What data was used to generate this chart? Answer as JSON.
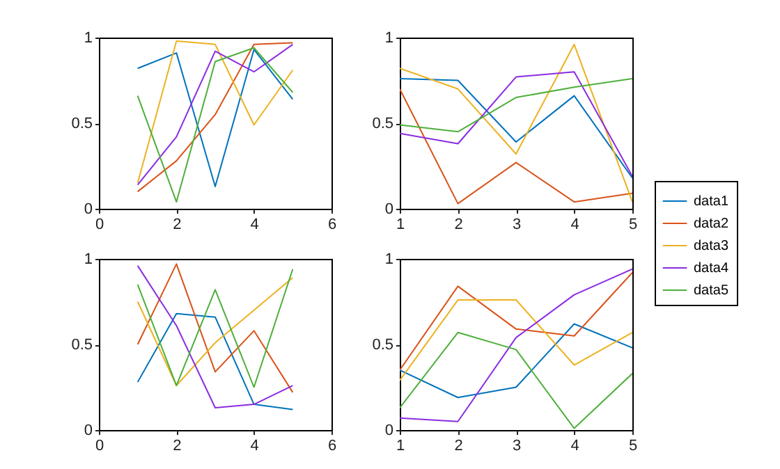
{
  "chart_data": [
    {
      "type": "line",
      "x": [
        1,
        2,
        3,
        4,
        5
      ],
      "xlim": [
        0,
        6
      ],
      "xticks": [
        0,
        2,
        4,
        6
      ],
      "ylim": [
        0,
        1
      ],
      "yticks": [
        0,
        0.5,
        1
      ],
      "legend": "right",
      "series": [
        {
          "name": "data1",
          "color": "#0072bd",
          "values": [
            0.82,
            0.91,
            0.13,
            0.93,
            0.64
          ]
        },
        {
          "name": "data2",
          "color": "#d95319",
          "values": [
            0.1,
            0.28,
            0.55,
            0.96,
            0.97
          ]
        },
        {
          "name": "data3",
          "color": "#edb120",
          "values": [
            0.15,
            0.98,
            0.96,
            0.49,
            0.81
          ]
        },
        {
          "name": "data4",
          "color": "#8b2be2",
          "values": [
            0.14,
            0.42,
            0.92,
            0.8,
            0.96
          ]
        },
        {
          "name": "data5",
          "color": "#4daf3a",
          "values": [
            0.66,
            0.04,
            0.86,
            0.94,
            0.68
          ]
        }
      ]
    },
    {
      "type": "line",
      "x": [
        1,
        2,
        3,
        4,
        5
      ],
      "xlim": [
        1,
        5
      ],
      "xticks": [
        1,
        2,
        3,
        4,
        5
      ],
      "ylim": [
        0,
        1
      ],
      "yticks": [
        0,
        0.5,
        1
      ],
      "legend": "right",
      "series": [
        {
          "name": "data1",
          "color": "#0072bd",
          "values": [
            0.76,
            0.75,
            0.39,
            0.66,
            0.18
          ]
        },
        {
          "name": "data2",
          "color": "#d95319",
          "values": [
            0.7,
            0.03,
            0.27,
            0.04,
            0.09
          ]
        },
        {
          "name": "data3",
          "color": "#edb120",
          "values": [
            0.82,
            0.7,
            0.32,
            0.96,
            0.04
          ]
        },
        {
          "name": "data4",
          "color": "#8b2be2",
          "values": [
            0.44,
            0.38,
            0.77,
            0.8,
            0.19
          ]
        },
        {
          "name": "data5",
          "color": "#4daf3a",
          "values": [
            0.49,
            0.45,
            0.65,
            0.71,
            0.76
          ]
        }
      ]
    },
    {
      "type": "line",
      "x": [
        1,
        2,
        3,
        4,
        5
      ],
      "xlim": [
        0,
        6
      ],
      "xticks": [
        0,
        2,
        4,
        6
      ],
      "ylim": [
        0,
        1
      ],
      "yticks": [
        0,
        0.5,
        1
      ],
      "legend": "right",
      "series": [
        {
          "name": "data1",
          "color": "#0072bd",
          "values": [
            0.28,
            0.68,
            0.66,
            0.15,
            0.12
          ]
        },
        {
          "name": "data2",
          "color": "#d95319",
          "values": [
            0.5,
            0.97,
            0.34,
            0.58,
            0.22
          ]
        },
        {
          "name": "data3",
          "color": "#edb120",
          "values": [
            0.75,
            0.26,
            0.51,
            0.7,
            0.89
          ]
        },
        {
          "name": "data4",
          "color": "#8b2be2",
          "values": [
            0.96,
            0.61,
            0.13,
            0.15,
            0.26
          ]
        },
        {
          "name": "data5",
          "color": "#4daf3a",
          "values": [
            0.85,
            0.26,
            0.82,
            0.25,
            0.94
          ]
        }
      ]
    },
    {
      "type": "line",
      "x": [
        1,
        2,
        3,
        4,
        5
      ],
      "xlim": [
        1,
        5
      ],
      "xticks": [
        1,
        2,
        3,
        4,
        5
      ],
      "ylim": [
        0,
        1
      ],
      "yticks": [
        0,
        0.5,
        1
      ],
      "legend": "right",
      "series": [
        {
          "name": "data1",
          "color": "#0072bd",
          "values": [
            0.35,
            0.19,
            0.25,
            0.62,
            0.48
          ]
        },
        {
          "name": "data2",
          "color": "#d95319",
          "values": [
            0.35,
            0.84,
            0.59,
            0.55,
            0.92
          ]
        },
        {
          "name": "data3",
          "color": "#edb120",
          "values": [
            0.29,
            0.76,
            0.76,
            0.38,
            0.57
          ]
        },
        {
          "name": "data4",
          "color": "#8b2be2",
          "values": [
            0.07,
            0.05,
            0.54,
            0.79,
            0.94
          ]
        },
        {
          "name": "data5",
          "color": "#4daf3a",
          "values": [
            0.13,
            0.57,
            0.47,
            0.01,
            0.33
          ]
        }
      ]
    }
  ]
}
